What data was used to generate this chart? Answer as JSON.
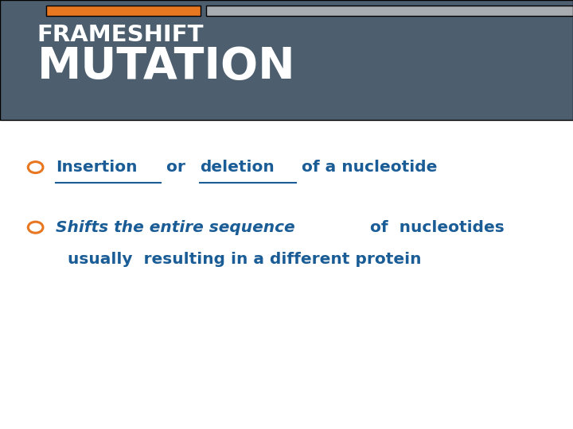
{
  "bg_color": "#ffffff",
  "header_bg_color": "#4d5f6e",
  "header_bar_orange_color": "#e87722",
  "header_bar_gray_color": "#a8adb2",
  "title_line1": "FRAMESHIFT",
  "title_line2": "MUTATION",
  "title_color": "#ffffff",
  "bullet_color": "#e87722",
  "text_color": "#1a5c96",
  "bullet1_part1": "Insertion",
  "bullet1_part2": " or ",
  "bullet1_part3": "deletion",
  "bullet1_part4": " of a nucleotide",
  "bullet2_part1": "Shifts the entire sequence",
  "bullet2_part2": " of  nucleotides",
  "bullet2_line2": "usually  resulting in a different protein"
}
